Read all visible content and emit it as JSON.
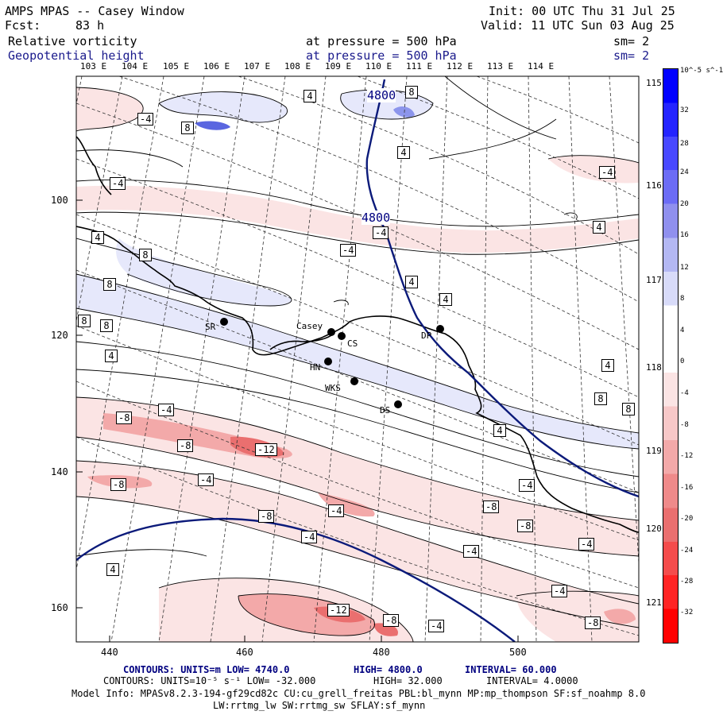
{
  "header": {
    "title": "AMPS MPAS -- Casey Window",
    "fcst_label": "Fcst:",
    "fcst_value": "83 h",
    "init": "Init: 00 UTC Thu 31 Jul 25",
    "valid": "Valid: 11 UTC Sun 03 Aug 25",
    "field1_name": "Relative vorticity",
    "field1_level": "at pressure =  500 hPa",
    "field1_sm": "sm= 2",
    "field2_name": "Geopotential height",
    "field2_level": "at pressure =  500 hPa",
    "field2_sm": "sm= 2"
  },
  "axes": {
    "top_lon_labels": [
      "103 E",
      "104 E",
      "105 E",
      "106 E",
      "107 E",
      "108 E",
      "109 E",
      "110 E",
      "111 E",
      "112 E",
      "113 E",
      "114 E"
    ],
    "right_lon_labels": [
      "115 E",
      "116 E",
      "117 E",
      "118 E",
      "119 E",
      "120 E",
      "121 E"
    ],
    "left_y_labels": [
      "100",
      "120",
      "140",
      "160"
    ],
    "bottom_x_labels": [
      "440",
      "460",
      "480",
      "500"
    ]
  },
  "stations": [
    {
      "name": "SR"
    },
    {
      "name": "Casey"
    },
    {
      "name": "CS"
    },
    {
      "name": "HN"
    },
    {
      "name": "WKS"
    },
    {
      "name": "DS"
    },
    {
      "name": "DP"
    }
  ],
  "height_contour_labels": [
    "4800",
    "4800"
  ],
  "vorticity_contour_labels": [
    "4",
    "8",
    "-4",
    "8",
    "4",
    "-4",
    "-4",
    "4",
    "-4",
    "8",
    "-4",
    "4",
    "8",
    "4",
    "8",
    "8",
    "4",
    "4",
    "4",
    "8",
    "-8",
    "-4",
    "-8",
    "-12",
    "8",
    "4",
    "-8",
    "-4",
    "-4",
    "-4",
    "-8",
    "-8",
    "-8",
    "-4",
    "-4",
    "-4",
    "4",
    "-12",
    "-8",
    "-4",
    "-4",
    "-8",
    "-4"
  ],
  "colorbar": {
    "unit": "10^-5 s^-1",
    "tick_labels": [
      "32",
      "28",
      "24",
      "20",
      "16",
      "12",
      "8",
      "4",
      "0",
      "-4",
      "-8",
      "-12",
      "-16",
      "-20",
      "-24",
      "-28",
      "-32"
    ]
  },
  "colors": {
    "navy_height": "#0b1a7a",
    "pos_strong": "#0000ff",
    "pos_light": "#e6e8fb",
    "neg_light": "#fbe4e4",
    "neg_mid": "#f3a9a9",
    "neg_strong": "#ff0000"
  },
  "footer": {
    "line1_a": "CONTOURS:  UNITS=m  LOW=  4740.0",
    "line1_b": "HIGH=  4800.0",
    "line1_c": "INTERVAL=   60.000",
    "line2_a": "CONTOURS:  UNITS=10⁻⁵ s⁻¹  LOW= -32.000",
    "line2_b": "HIGH=  32.000",
    "line2_c": "INTERVAL=   4.0000",
    "line3": "Model Info: MPASv8.2.3-194-gf29cd82c CU:cu_grell_freitas PBL:bl_mynn MP:mp_thompson SF:sf_noahmp 8.0",
    "line4": "LW:rrtmg_lw SW:rrtmg_sw SFLAY:sf_mynn"
  }
}
